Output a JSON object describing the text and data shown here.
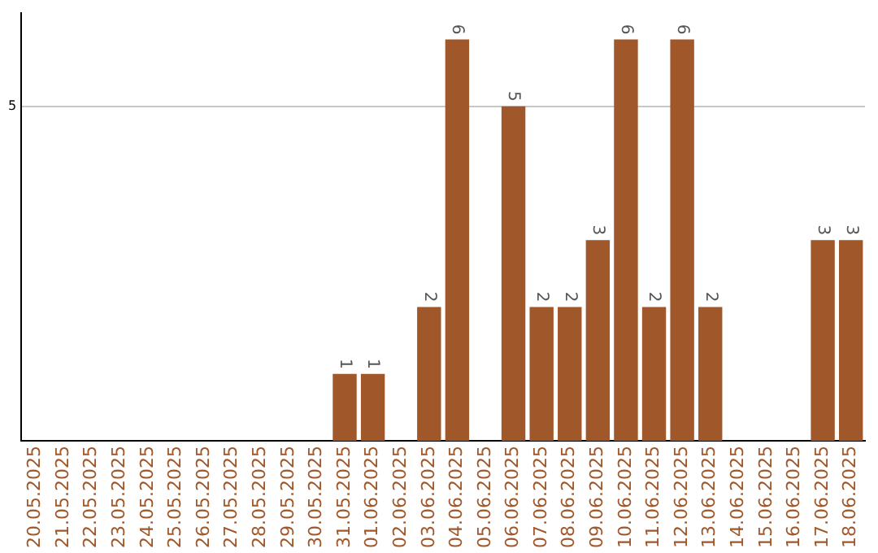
{
  "chart_data": {
    "type": "bar",
    "categories": [
      "20.05.2025",
      "21.05.2025",
      "22.05.2025",
      "23.05.2025",
      "24.05.2025",
      "25.05.2025",
      "26.05.2025",
      "27.05.2025",
      "28.05.2025",
      "29.05.2025",
      "30.05.2025",
      "31.05.2025",
      "01.06.2025",
      "02.06.2025",
      "03.06.2025",
      "04.06.2025",
      "05.06.2025",
      "06.06.2025",
      "07.06.2025",
      "08.06.2025",
      "09.06.2025",
      "10.06.2025",
      "11.06.2025",
      "12.06.2025",
      "13.06.2025",
      "14.06.2025",
      "15.06.2025",
      "16.06.2025",
      "17.06.2025",
      "18.06.2025"
    ],
    "values": [
      0,
      0,
      0,
      0,
      0,
      0,
      0,
      0,
      0,
      0,
      0,
      1,
      1,
      0,
      2,
      6,
      0,
      5,
      2,
      2,
      3,
      6,
      2,
      6,
      2,
      0,
      0,
      0,
      3,
      3
    ],
    "value_labels": [
      null,
      null,
      null,
      null,
      null,
      null,
      null,
      null,
      null,
      null,
      null,
      "1",
      "1",
      null,
      "2",
      "6",
      null,
      "5",
      "2",
      "2",
      "3",
      "6",
      "2",
      "6",
      "2",
      null,
      null,
      null,
      "3",
      "3"
    ],
    "color": "#a0572a",
    "ylim": [
      0,
      6.4
    ],
    "yticks": [
      5
    ],
    "grid": "y"
  }
}
